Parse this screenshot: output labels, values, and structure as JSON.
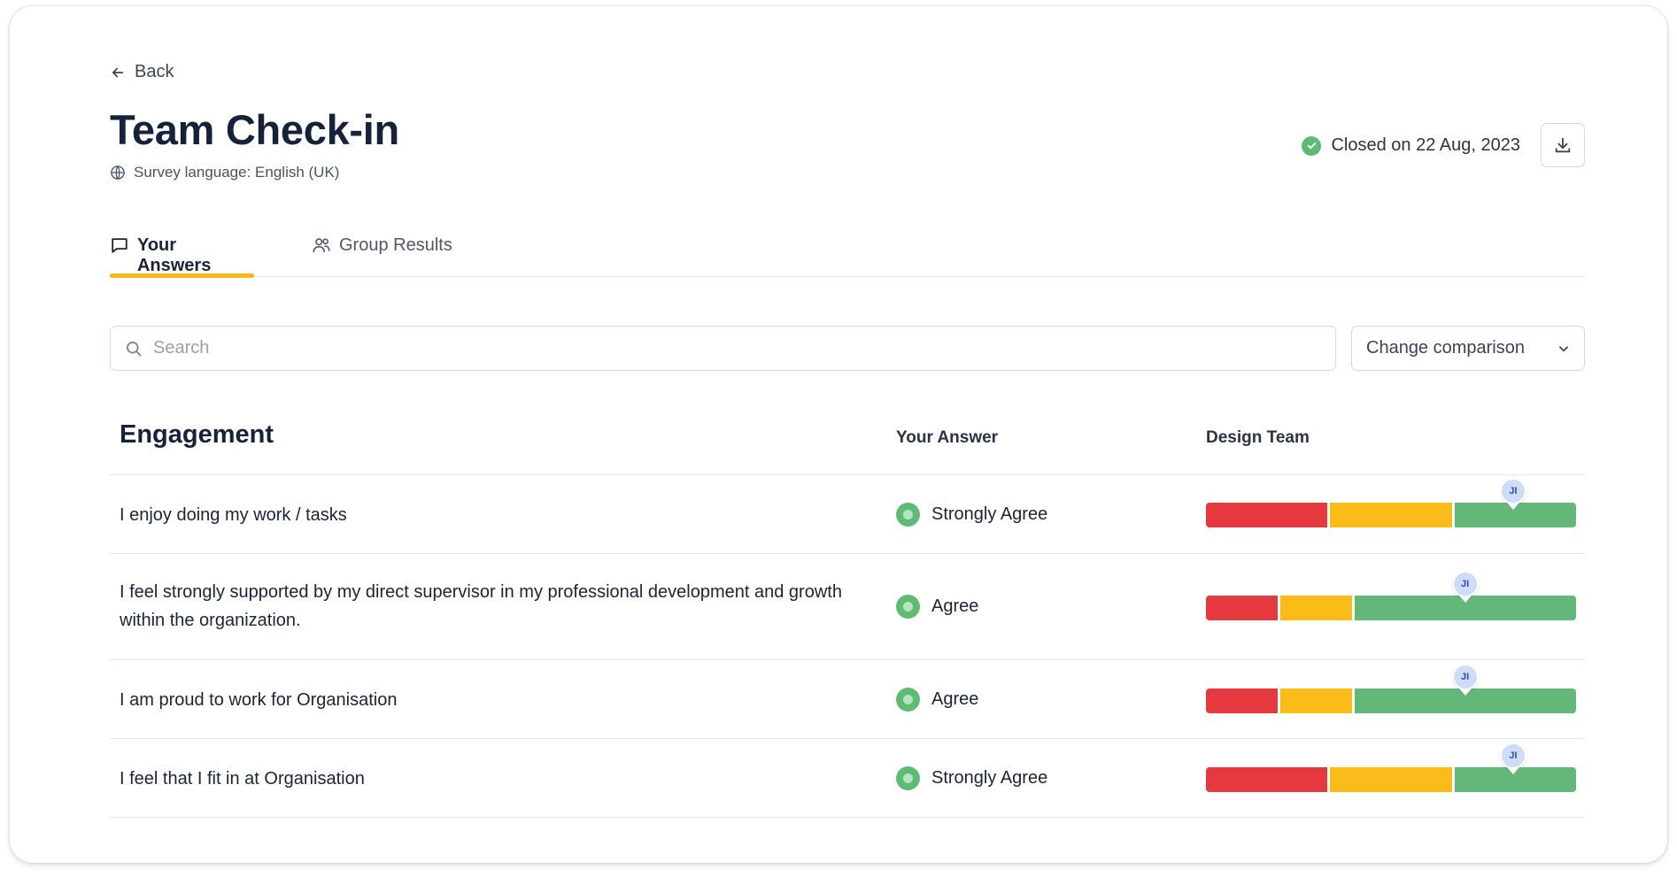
{
  "nav": {
    "back_label": "Back"
  },
  "header": {
    "title": "Team Check-in",
    "survey_language": "Survey language: English (UK)",
    "status_text": "Closed on 22 Aug, 2023",
    "status_color": "#5fba73"
  },
  "tabs": [
    {
      "label": "Your Answers",
      "icon": "speech-bubble-icon",
      "active": true
    },
    {
      "label": "Group Results",
      "icon": "group-icon",
      "active": false
    }
  ],
  "toolbar": {
    "search_placeholder": "Search",
    "search_value": "",
    "comparison_label": "Change comparison"
  },
  "table": {
    "section_title": "Engagement",
    "col_answer": "Your Answer",
    "col_team": "Design Team",
    "rows": [
      {
        "question": "I enjoy doing my work / tasks",
        "answer": "Strongly Agree",
        "distribution": [
          1,
          1,
          1
        ],
        "marker_label": "JI",
        "marker_position": 0.83
      },
      {
        "question": "I feel strongly supported by my direct supervisor in my professional development and growth within the organization.",
        "answer": "Agree",
        "distribution": [
          1,
          1,
          3.1
        ],
        "marker_label": "JI",
        "marker_position": 0.7
      },
      {
        "question": "I am proud to work for Organisation",
        "answer": "Agree",
        "distribution": [
          1,
          1,
          3.1
        ],
        "marker_label": "JI",
        "marker_position": 0.7
      },
      {
        "question": "I feel that I fit in at Organisation",
        "answer": "Strongly Agree",
        "distribution": [
          1,
          1,
          1
        ],
        "marker_label": "JI",
        "marker_position": 0.83
      }
    ]
  },
  "colors": {
    "accent": "#f6b81a",
    "negative": "#e5383f",
    "neutral": "#fbbc19",
    "positive": "#63b779"
  }
}
